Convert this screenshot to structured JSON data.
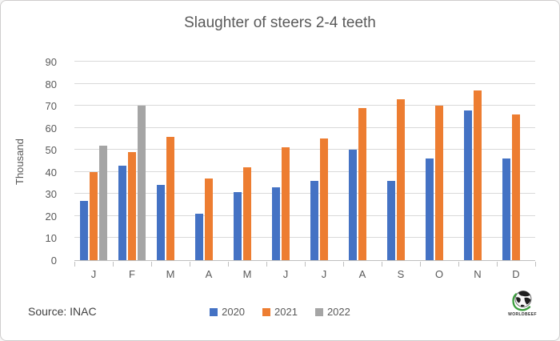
{
  "chart_data": {
    "type": "bar",
    "title": "Slaughter of steers 2-4 teeth",
    "ylabel": "Thousand",
    "xlabel": "",
    "ylim": [
      0,
      90
    ],
    "ytick_step": 10,
    "grid": true,
    "gridline_color": "#d9d9d9",
    "axis_line_color": "#bfbfbf",
    "legend_position": "bottom",
    "categories": [
      "J",
      "F",
      "M",
      "A",
      "M",
      "J",
      "J",
      "A",
      "S",
      "O",
      "N",
      "D"
    ],
    "series": [
      {
        "name": "2020",
        "color": "#4472C4",
        "values": [
          27,
          43,
          34,
          21,
          31,
          33,
          36,
          50,
          36,
          46,
          68,
          46
        ]
      },
      {
        "name": "2021",
        "color": "#ED7D31",
        "values": [
          40,
          49,
          56,
          37,
          42,
          51,
          55,
          69,
          73,
          70,
          77,
          66
        ]
      },
      {
        "name": "2022",
        "color": "#A5A5A5",
        "values": [
          52,
          70,
          null,
          null,
          null,
          null,
          null,
          null,
          null,
          null,
          null,
          null
        ]
      }
    ]
  },
  "footer": {
    "source": "Source: INAC",
    "logo_text": "WORLDBEEF"
  },
  "colors": {
    "title_text": "#595959",
    "axis_text": "#595959",
    "frame_border": "#cfcdcd",
    "logo_green": "#3a9e3c"
  }
}
